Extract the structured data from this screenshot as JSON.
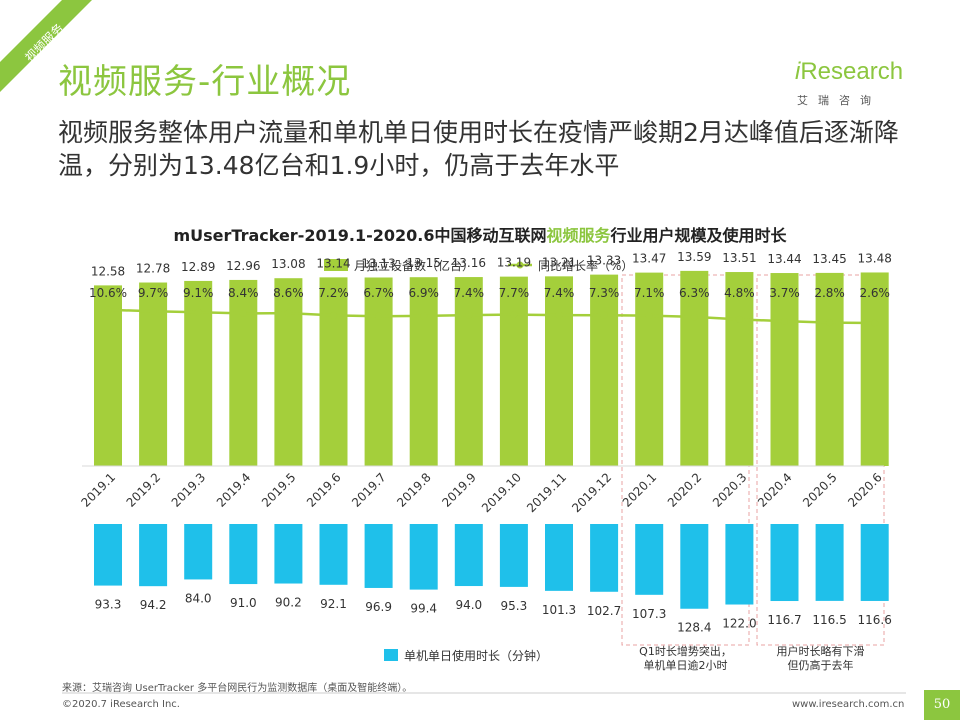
{
  "corner_tag": "视频服务",
  "page_title": "视频服务-行业概况",
  "logo": {
    "name_i": "i",
    "name_rest": "Research",
    "subname": "艾瑞咨询"
  },
  "subtitle": "视频服务整体用户流量和单机单日使用时长在疫情严峻期2月达峰值后逐渐降温，分别为13.48亿台和1.9小时，仍高于去年水平",
  "chart_data": {
    "type": "bar",
    "title": {
      "pre": "mUserTracker-2019.1-2020.6中国移动互联网",
      "highlight": "视频服务",
      "post": "行业用户规模及使用时长"
    },
    "categories": [
      "2019.1",
      "2019.2",
      "2019.3",
      "2019.4",
      "2019.5",
      "2019.6",
      "2019.7",
      "2019.8",
      "2019.9",
      "2019.10",
      "2019.11",
      "2019.12",
      "2020.1",
      "2020.2",
      "2020.3",
      "2020.4",
      "2020.5",
      "2020.6"
    ],
    "series": [
      {
        "name": "月独立设备数（亿台）",
        "kind": "bar",
        "color": "#a4cf3b",
        "values": [
          12.58,
          12.78,
          12.89,
          12.96,
          13.08,
          13.14,
          13.13,
          13.15,
          13.16,
          13.19,
          13.21,
          13.33,
          13.47,
          13.59,
          13.51,
          13.44,
          13.45,
          13.48
        ],
        "labels": [
          "12.58",
          "12.78",
          "12.89",
          "12.96",
          "13.08",
          "13.14",
          "13.13",
          "13.15",
          "13.16",
          "13.19",
          "13.21",
          "13.33",
          "13.47",
          "13.59",
          "13.51",
          "13.44",
          "13.45",
          "13.48"
        ]
      },
      {
        "name": "同比增长率（%）",
        "kind": "line",
        "color": "#a4cf3b",
        "values": [
          10.6,
          9.7,
          9.1,
          8.4,
          8.6,
          7.2,
          6.7,
          6.9,
          7.4,
          7.7,
          7.4,
          7.3,
          7.1,
          6.3,
          4.8,
          3.7,
          2.8,
          2.6
        ],
        "labels": [
          "10.6%",
          "9.7%",
          "9.1%",
          "8.4%",
          "8.6%",
          "7.2%",
          "6.7%",
          "6.9%",
          "7.4%",
          "7.7%",
          "7.4%",
          "7.3%",
          "7.1%",
          "6.3%",
          "4.8%",
          "3.7%",
          "2.8%",
          "2.6%"
        ]
      },
      {
        "name": "单机单日使用时长（分钟）",
        "kind": "bar-down",
        "color": "#1fc0ea",
        "values": [
          93.3,
          94.2,
          84.0,
          91.0,
          90.2,
          92.1,
          96.9,
          99.4,
          94.0,
          95.3,
          101.3,
          102.7,
          107.3,
          128.4,
          122.0,
          116.7,
          116.5,
          116.6
        ],
        "labels": [
          "93.3",
          "94.2",
          "84.0",
          "91.0",
          "90.2",
          "92.1",
          "96.9",
          "99.4",
          "94.0",
          "95.3",
          "101.3",
          "102.7",
          "107.3",
          "128.4",
          "122.0",
          "116.7",
          "116.5",
          "116.6"
        ]
      }
    ],
    "annotations": [
      {
        "text_lines": [
          "Q1时长增势突出，",
          "单机单日逾2小时"
        ],
        "categories": [
          "2020.1",
          "2020.3"
        ]
      },
      {
        "text_lines": [
          "用户时长略有下滑",
          "但仍高于去年"
        ],
        "categories": [
          "2020.4",
          "2020.6"
        ]
      }
    ],
    "legend_placement": "top"
  },
  "footer": {
    "source": "来源：艾瑞咨询 UserTracker 多平台网民行为监测数据库（桌面及智能终端）。",
    "copyright": "©2020.7 iResearch Inc.",
    "website": "www.iresearch.com.cn",
    "page": "50"
  }
}
